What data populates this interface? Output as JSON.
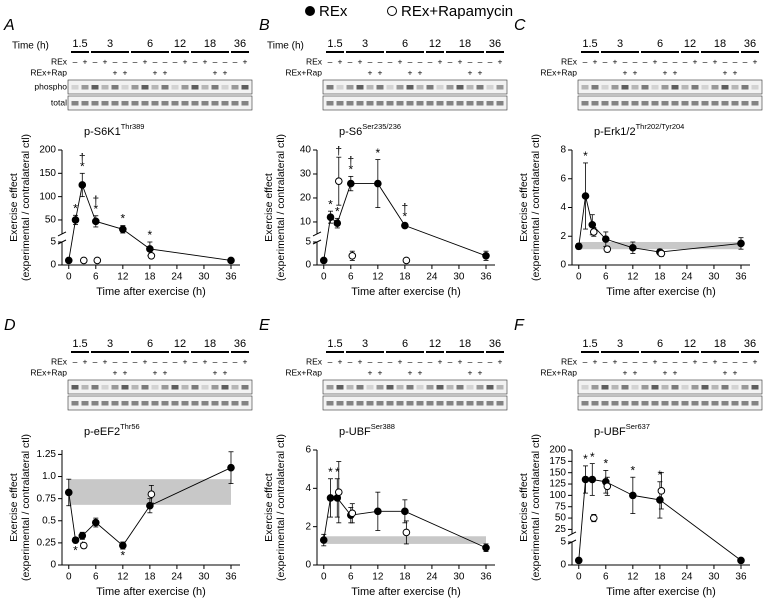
{
  "legend": [
    {
      "name": "REx",
      "marker": "filled"
    },
    {
      "name": "REx+Rapamycin",
      "marker": "open"
    }
  ],
  "blot": {
    "time_label": "Time (h)",
    "times": [
      "1.5",
      "3",
      "6",
      "12",
      "18",
      "36"
    ],
    "rex_label": "REx",
    "rap_label": "REx+Rap",
    "rex": [
      "–",
      "+",
      "–",
      "+",
      "–",
      "–",
      "–",
      "+",
      "–",
      "–",
      "–",
      "+",
      "–",
      "+",
      "–",
      "–",
      "–",
      "+"
    ],
    "rap": [
      null,
      null,
      null,
      null,
      "+",
      "+",
      null,
      null,
      "+",
      "+",
      null,
      null,
      null,
      null,
      "+",
      "+",
      null,
      null
    ]
  },
  "chart_data": [
    {
      "type": "line",
      "panel": "A",
      "title": "p-S6K1",
      "title_sup": "Thr389",
      "show_time_label": true,
      "blot_rows": [
        "phospho",
        "total"
      ],
      "xlabel": "Time after exercise (h)",
      "ylabel": [
        "Exercise effect",
        "(experimental / contralateral ctl)"
      ],
      "xlim": [
        -1.5,
        38
      ],
      "xticks": [
        0,
        6,
        12,
        18,
        24,
        30,
        36
      ],
      "ylim": [
        0,
        200
      ],
      "ybreak": [
        5,
        20
      ],
      "yticks": [
        0,
        5,
        50,
        100,
        150,
        200
      ],
      "series": [
        {
          "marker": "filled",
          "color": "#000000",
          "x": [
            0,
            1.5,
            3,
            6,
            12,
            18,
            36
          ],
          "values": [
            1,
            50,
            125,
            47,
            30,
            3.5,
            1
          ],
          "errors": [
            0.3,
            10,
            25,
            12,
            8,
            1.5,
            0.2
          ],
          "labels": [
            null,
            [
              "*"
            ],
            [
              "†",
              "*"
            ],
            [
              "†",
              "*"
            ],
            [
              "*"
            ],
            [
              "*"
            ],
            null
          ]
        },
        {
          "marker": "open",
          "color": "#000000",
          "x": [
            3,
            6,
            18
          ],
          "values": [
            1,
            1,
            2
          ],
          "errors": [
            0.3,
            0.4,
            0.5
          ],
          "labels": [
            null,
            null,
            null
          ]
        }
      ]
    },
    {
      "type": "line",
      "panel": "B",
      "title": "p-S6",
      "title_sup": "Ser235/236",
      "show_time_label": true,
      "xlabel": "Time after exercise (h)",
      "ylabel": [
        "Exercise effect",
        "(experimental / contralateral ctl)"
      ],
      "xlim": [
        -1.5,
        38
      ],
      "xticks": [
        0,
        6,
        12,
        18,
        24,
        30,
        36
      ],
      "ylim": [
        0,
        40
      ],
      "ybreak": [
        5,
        5
      ],
      "yticks": [
        0,
        5,
        10,
        20,
        30,
        40
      ],
      "series": [
        {
          "marker": "filled",
          "color": "#000000",
          "x": [
            0,
            1.5,
            3,
            6,
            12,
            18,
            36
          ],
          "values": [
            1,
            12,
            9.5,
            26,
            26,
            8.5,
            2
          ],
          "errors": [
            0.3,
            2.5,
            2,
            3,
            10,
            1,
            1
          ],
          "labels": [
            null,
            [
              "*"
            ],
            [
              "*"
            ],
            [
              "†",
              "*"
            ],
            [
              "*"
            ],
            [
              "†",
              "*"
            ],
            null
          ]
        },
        {
          "marker": "open",
          "color": "#000000",
          "x": [
            3,
            6,
            18
          ],
          "values": [
            27,
            2,
            1
          ],
          "errors": [
            10,
            1,
            0.3
          ],
          "labels": [
            [
              "†"
            ],
            null,
            null
          ]
        }
      ]
    },
    {
      "type": "line",
      "panel": "C",
      "title": "p-Erk1/2",
      "title_sup": "Thr202/Tyr204",
      "xlabel": "Time after exercise (h)",
      "ylabel": [
        "Exercise effect",
        "(experimental / contralateral ctl)"
      ],
      "xlim": [
        -1.5,
        38
      ],
      "xticks": [
        0,
        6,
        12,
        18,
        24,
        30,
        36
      ],
      "ylim": [
        0,
        8
      ],
      "yticks": [
        0,
        2,
        4,
        6,
        8
      ],
      "band": [
        1.1,
        1.6
      ],
      "series": [
        {
          "marker": "filled",
          "color": "#000000",
          "x": [
            0,
            1.5,
            3,
            6,
            12,
            18,
            36
          ],
          "values": [
            1.3,
            4.8,
            2.8,
            1.8,
            1.2,
            0.9,
            1.5
          ],
          "errors": [
            0.2,
            2.3,
            0.7,
            0.5,
            0.4,
            0.2,
            0.4
          ],
          "labels": [
            null,
            [
              "*"
            ],
            null,
            null,
            null,
            null,
            null
          ]
        },
        {
          "marker": "open",
          "color": "#000000",
          "x": [
            3,
            6,
            18
          ],
          "values": [
            2.3,
            1.1,
            0.8
          ],
          "errors": [
            0.3,
            0.2,
            0.2
          ],
          "labels": [
            null,
            null,
            null
          ]
        }
      ]
    },
    {
      "type": "line",
      "panel": "D",
      "title": "p-eEF2",
      "title_sup": "Thr56",
      "label_side": "below",
      "xlabel": "Time after exercise (h)",
      "ylabel": [
        "Exercise effect",
        "(experimental / contralateral ctl)"
      ],
      "xlim": [
        -1.5,
        38
      ],
      "xticks": [
        0,
        6,
        12,
        18,
        24,
        30,
        36
      ],
      "ylim": [
        0,
        1.3
      ],
      "yticks": [
        0,
        0.25,
        0.5,
        0.75,
        {
          "value": 1,
          "label": "1.0"
        },
        1.25
      ],
      "band": [
        0.68,
        0.97
      ],
      "series": [
        {
          "marker": "filled",
          "color": "#000000",
          "x": [
            0,
            1.5,
            3,
            6,
            12,
            18,
            36
          ],
          "values": [
            0.82,
            0.28,
            0.33,
            0.48,
            0.22,
            0.67,
            1.1
          ],
          "errors": [
            0.15,
            0.03,
            0.04,
            0.05,
            0.04,
            0.08,
            0.18
          ],
          "labels": [
            null,
            [
              "*"
            ],
            [
              "*"
            ],
            null,
            [
              "*"
            ],
            null,
            null
          ]
        },
        {
          "marker": "open",
          "color": "#000000",
          "x": [
            3,
            18
          ],
          "values": [
            0.22,
            0.8
          ],
          "errors": [
            0.03,
            0.1
          ],
          "labels": [
            null,
            null
          ]
        }
      ]
    },
    {
      "type": "line",
      "panel": "E",
      "title": "p-UBF",
      "title_sup": "Ser388",
      "xlabel": "Time after exercise (h)",
      "ylabel": [
        "Exercise effect",
        "(experimental / contralateral ctl)"
      ],
      "xlim": [
        -1.5,
        38
      ],
      "xticks": [
        0,
        6,
        12,
        18,
        24,
        30,
        36
      ],
      "ylim": [
        0,
        6
      ],
      "yticks": [
        0,
        2,
        4,
        6
      ],
      "band": [
        1.1,
        1.5
      ],
      "series": [
        {
          "marker": "filled",
          "color": "#000000",
          "x": [
            0,
            1.5,
            3,
            6,
            12,
            18,
            36
          ],
          "values": [
            1.3,
            3.5,
            3.5,
            2.6,
            2.8,
            2.8,
            0.9
          ],
          "errors": [
            0.3,
            1,
            1,
            0.4,
            1,
            0.6,
            0.2
          ],
          "labels": [
            null,
            [
              "*"
            ],
            [
              "*"
            ],
            null,
            null,
            null,
            null
          ]
        },
        {
          "marker": "open",
          "color": "#000000",
          "x": [
            3,
            6,
            18
          ],
          "values": [
            3.8,
            2.7,
            1.7
          ],
          "errors": [
            1.6,
            0.5,
            0.6
          ],
          "labels": [
            null,
            null,
            null
          ]
        }
      ]
    },
    {
      "type": "line",
      "panel": "F",
      "title": "p-UBF",
      "title_sup": "Ser637",
      "xlabel": "Time after exercise (h)",
      "ylabel": [
        "Exercise effect",
        "(experimental / contralateral ctl)"
      ],
      "xlim": [
        -1.5,
        38
      ],
      "xticks": [
        0,
        6,
        12,
        18,
        24,
        30,
        36
      ],
      "ylim": [
        0,
        200
      ],
      "ybreak": [
        5,
        15
      ],
      "yticks": [
        0,
        5,
        25,
        50,
        75,
        100,
        125,
        150,
        175,
        200
      ],
      "series": [
        {
          "marker": "filled",
          "color": "#000000",
          "x": [
            0,
            1.5,
            3,
            6,
            12,
            18,
            36
          ],
          "values": [
            1,
            135,
            135,
            130,
            100,
            90,
            1
          ],
          "errors": [
            0.2,
            30,
            35,
            25,
            40,
            40,
            0.2
          ],
          "labels": [
            null,
            [
              "*"
            ],
            [
              "*"
            ],
            [
              "*"
            ],
            [
              "*"
            ],
            [
              "*"
            ],
            null
          ]
        },
        {
          "marker": "open",
          "color": "#000000",
          "x": [
            3,
            6,
            18
          ],
          "values": [
            50,
            120,
            110
          ],
          "errors": [
            8,
            20,
            40
          ],
          "labels": [
            null,
            null,
            null
          ]
        }
      ]
    }
  ]
}
